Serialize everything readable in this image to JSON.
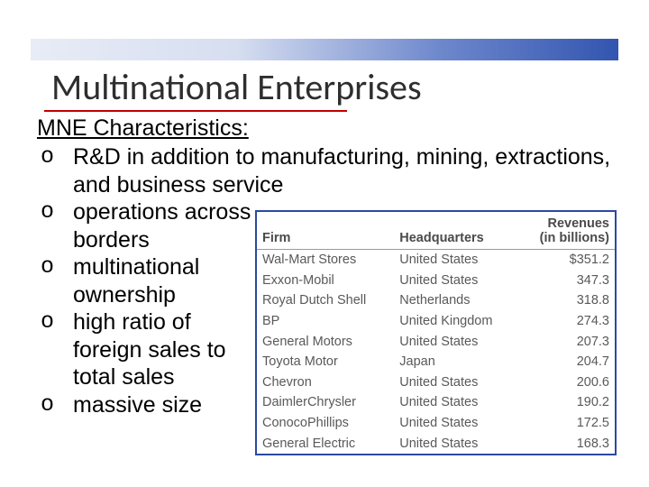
{
  "title": "Multinational Enterprises",
  "subheading": "MNE Characteristics:",
  "bullets": [
    "R&D in addition to manufacturing, mining, extractions, and business service",
    "operations across borders",
    "multinational ownership",
    "high ratio of foreign sales to total sales",
    "massive size"
  ],
  "table": {
    "headers": {
      "firm": "Firm",
      "hq": "Headquarters",
      "rev1": "Revenues",
      "rev2": "(in billions)"
    },
    "rows": [
      {
        "firm": "Wal-Mart Stores",
        "hq": "United States",
        "rev": "$351.2"
      },
      {
        "firm": "Exxon-Mobil",
        "hq": "United States",
        "rev": "347.3"
      },
      {
        "firm": "Royal Dutch Shell",
        "hq": "Netherlands",
        "rev": "318.8"
      },
      {
        "firm": "BP",
        "hq": "United Kingdom",
        "rev": "274.3"
      },
      {
        "firm": "General Motors",
        "hq": "United States",
        "rev": "207.3"
      },
      {
        "firm": "Toyota Motor",
        "hq": "Japan",
        "rev": "204.7"
      },
      {
        "firm": "Chevron",
        "hq": "United States",
        "rev": "200.6"
      },
      {
        "firm": "DaimlerChrysler",
        "hq": "United States",
        "rev": "190.2"
      },
      {
        "firm": "ConocoPhillips",
        "hq": "United States",
        "rev": "172.5"
      },
      {
        "firm": "General Electric",
        "hq": "United States",
        "rev": "168.3"
      }
    ]
  }
}
